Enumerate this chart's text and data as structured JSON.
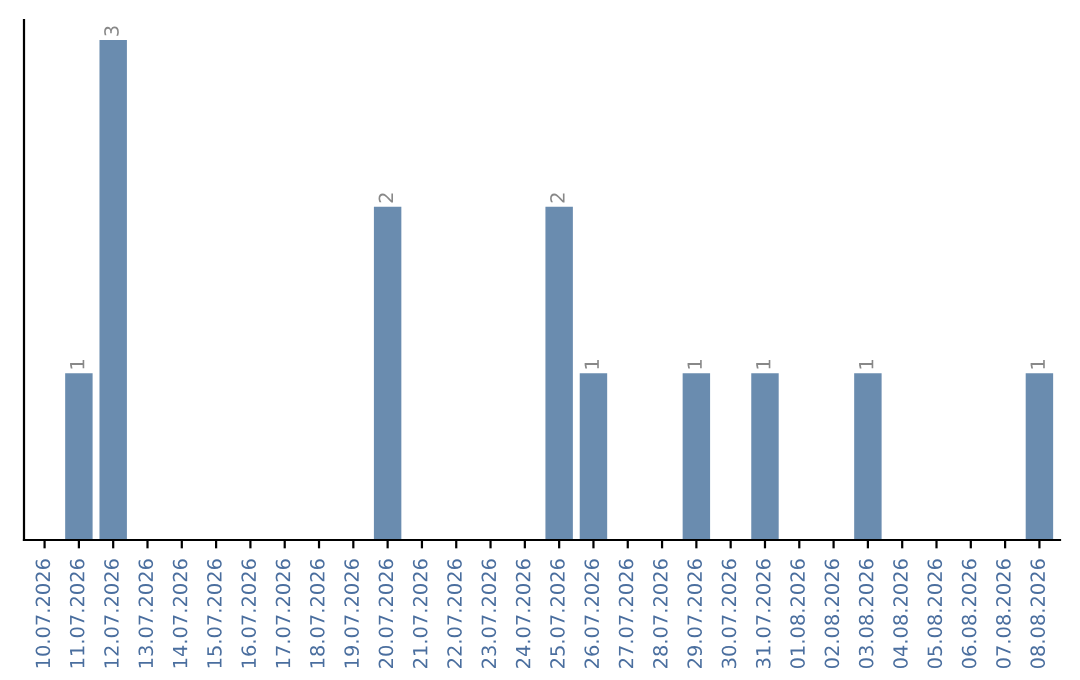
{
  "chart_data": {
    "type": "bar",
    "categories": [
      "10.07.2026",
      "11.07.2026",
      "12.07.2026",
      "13.07.2026",
      "14.07.2026",
      "15.07.2026",
      "16.07.2026",
      "17.07.2026",
      "18.07.2026",
      "19.07.2026",
      "20.07.2026",
      "21.07.2026",
      "22.07.2026",
      "23.07.2026",
      "24.07.2026",
      "25.07.2026",
      "26.07.2026",
      "27.07.2026",
      "28.07.2026",
      "29.07.2026",
      "30.07.2026",
      "31.07.2026",
      "01.08.2026",
      "02.08.2026",
      "03.08.2026",
      "04.08.2026",
      "05.08.2026",
      "06.08.2026",
      "07.08.2026",
      "08.08.2026"
    ],
    "values": [
      0,
      1,
      3,
      0,
      0,
      0,
      0,
      0,
      0,
      0,
      2,
      0,
      0,
      0,
      0,
      2,
      1,
      0,
      0,
      1,
      0,
      1,
      0,
      0,
      1,
      0,
      0,
      0,
      0,
      1
    ],
    "value_labels": [
      null,
      "1",
      "3",
      null,
      null,
      null,
      null,
      null,
      null,
      null,
      "2",
      null,
      null,
      null,
      null,
      "2",
      "1",
      null,
      null,
      "1",
      null,
      "1",
      null,
      null,
      "1",
      null,
      null,
      null,
      null,
      "1"
    ],
    "color": "#6a8caf",
    "ylim": [
      0,
      3.12
    ],
    "tick_labels": "x",
    "grid": false,
    "legend": false
  }
}
